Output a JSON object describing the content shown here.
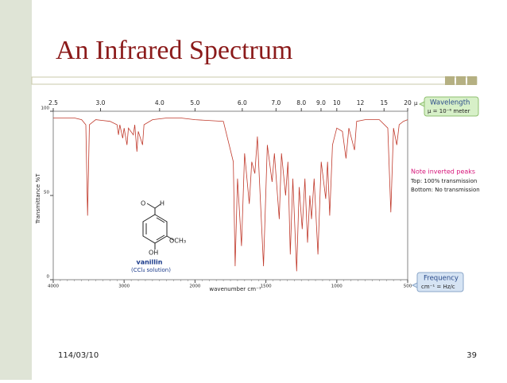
{
  "slide_title": "An Infrared Spectrum",
  "footer": {
    "date": "114/03/10",
    "page": "39"
  },
  "molecule": {
    "o": "O",
    "h": "H",
    "och3": "OCH₃",
    "oh": "OH",
    "name": "vanillin",
    "solvent": "(CCl₄ solution)"
  },
  "chart_data": {
    "type": "line",
    "x_label": "wavenumber cm⁻¹",
    "y_label": "Transmittance %T",
    "top_axis_unit": "μ",
    "annotations": {
      "wavelength": "Wavelength",
      "micron": "μ = 10⁻⁶ meter",
      "note": "Note inverted peaks",
      "top": "Top: 100% transmission",
      "bottom": "Bottom: No transmission",
      "frequency": "Frequency",
      "frequency_unit": "cm⁻¹ = Hz/c"
    },
    "color": "#c0392b",
    "xlim": [
      4000,
      500
    ],
    "xticks": [
      4000,
      3000,
      2000,
      1500,
      1000,
      500
    ],
    "top_ticks": [
      2.5,
      {
        "value": 3,
        "label": "3.0"
      },
      {
        "value": 4,
        "label": "4.0"
      },
      {
        "value": 5,
        "label": "5.0"
      },
      {
        "value": 6,
        "label": "6.0"
      },
      {
        "value": 7,
        "label": "7.0"
      },
      {
        "value": 8,
        "label": "8.0"
      },
      {
        "value": 9,
        "label": "9.0"
      },
      10,
      12,
      15,
      20
    ],
    "ylim": [
      0,
      100
    ],
    "yticks": [
      0,
      50,
      100
    ],
    "x": [
      4000,
      3700,
      3600,
      3540,
      3516,
      3490,
      3400,
      3200,
      3100,
      3080,
      3060,
      3020,
      3000,
      2960,
      2940,
      2870,
      2850,
      2820,
      2800,
      2740,
      2720,
      2600,
      2400,
      2200,
      2000,
      1800,
      1730,
      1717,
      1700,
      1672,
      1650,
      1617,
      1600,
      1578,
      1560,
      1517,
      1490,
      1456,
      1440,
      1406,
      1390,
      1361,
      1345,
      1328,
      1310,
      1283,
      1265,
      1244,
      1225,
      1206,
      1190,
      1178,
      1160,
      1133,
      1110,
      1078,
      1065,
      1050,
      1030,
      1000,
      960,
      935,
      915,
      875,
      860,
      800,
      700,
      640,
      619,
      600,
      577,
      560,
      530,
      500
    ],
    "values": [
      96,
      96,
      95,
      92,
      38,
      92,
      95,
      94,
      92,
      86,
      92,
      84,
      90,
      80,
      90,
      86,
      92,
      76,
      88,
      80,
      92,
      95,
      96,
      96,
      95,
      94,
      70,
      8,
      60,
      20,
      75,
      45,
      70,
      63,
      85,
      8,
      80,
      58,
      75,
      36,
      75,
      50,
      70,
      15,
      60,
      5,
      55,
      30,
      60,
      22,
      50,
      36,
      60,
      15,
      70,
      48,
      70,
      38,
      80,
      90,
      88,
      72,
      90,
      77,
      94,
      95,
      95,
      90,
      40,
      90,
      80,
      92,
      94,
      95
    ]
  }
}
